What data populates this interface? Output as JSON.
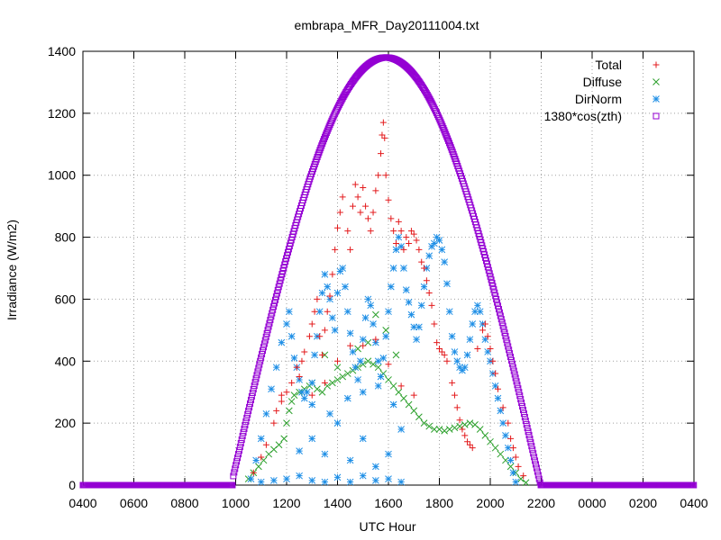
{
  "chart_data": {
    "type": "scatter",
    "title": "embrapa_MFR_Day20111004.txt",
    "xlabel": "UTC Hour",
    "ylabel": "Irradiance (W/m2)",
    "xlim": [
      0,
      24
    ],
    "ylim": [
      0,
      1400
    ],
    "x_ticks": [
      {
        "value": 0,
        "label": "0400"
      },
      {
        "value": 2,
        "label": "0600"
      },
      {
        "value": 4,
        "label": "0800"
      },
      {
        "value": 6,
        "label": "1000"
      },
      {
        "value": 8,
        "label": "1200"
      },
      {
        "value": 10,
        "label": "1400"
      },
      {
        "value": 12,
        "label": "1600"
      },
      {
        "value": 14,
        "label": "1800"
      },
      {
        "value": 16,
        "label": "2000"
      },
      {
        "value": 18,
        "label": "2200"
      },
      {
        "value": 20,
        "label": "0000"
      },
      {
        "value": 22,
        "label": "0200"
      },
      {
        "value": 24,
        "label": "0400"
      }
    ],
    "y_ticks": [
      0,
      200,
      400,
      600,
      800,
      1000,
      1200,
      1400
    ],
    "grid": true,
    "legend_position": "top-right",
    "colors": {
      "total": "#e31a1c",
      "diffuse": "#2ca02c",
      "dirnorm": "#1f8fe6",
      "cosine": "#9400d3"
    },
    "series": [
      {
        "name": "Total",
        "marker": "plus",
        "points": [
          [
            6.7,
            40
          ],
          [
            7.0,
            90
          ],
          [
            7.2,
            130
          ],
          [
            7.5,
            200
          ],
          [
            7.6,
            240
          ],
          [
            7.8,
            270
          ],
          [
            8.0,
            300
          ],
          [
            8.2,
            330
          ],
          [
            8.4,
            380
          ],
          [
            8.6,
            400
          ],
          [
            8.7,
            430
          ],
          [
            8.9,
            480
          ],
          [
            9.0,
            520
          ],
          [
            9.1,
            560
          ],
          [
            9.2,
            600
          ],
          [
            9.3,
            480
          ],
          [
            9.4,
            420
          ],
          [
            9.5,
            500
          ],
          [
            9.6,
            560
          ],
          [
            9.7,
            610
          ],
          [
            9.8,
            680
          ],
          [
            9.9,
            760
          ],
          [
            10.0,
            830
          ],
          [
            10.1,
            880
          ],
          [
            10.2,
            930
          ],
          [
            10.4,
            820
          ],
          [
            10.5,
            760
          ],
          [
            10.6,
            900
          ],
          [
            10.7,
            970
          ],
          [
            10.8,
            930
          ],
          [
            10.9,
            880
          ],
          [
            11.0,
            960
          ],
          [
            11.1,
            900
          ],
          [
            11.2,
            860
          ],
          [
            11.3,
            820
          ],
          [
            11.4,
            880
          ],
          [
            11.5,
            950
          ],
          [
            11.6,
            1000
          ],
          [
            11.7,
            1070
          ],
          [
            11.75,
            1130
          ],
          [
            11.8,
            1170
          ],
          [
            11.85,
            1120
          ],
          [
            11.9,
            1000
          ],
          [
            12.0,
            920
          ],
          [
            12.1,
            860
          ],
          [
            12.2,
            820
          ],
          [
            12.3,
            780
          ],
          [
            12.4,
            850
          ],
          [
            12.5,
            820
          ],
          [
            12.6,
            760
          ],
          [
            12.7,
            800
          ],
          [
            12.8,
            780
          ],
          [
            12.9,
            820
          ],
          [
            13.0,
            810
          ],
          [
            13.1,
            790
          ],
          [
            13.2,
            760
          ],
          [
            13.3,
            720
          ],
          [
            13.4,
            700
          ],
          [
            13.5,
            660
          ],
          [
            13.6,
            620
          ],
          [
            13.7,
            580
          ],
          [
            13.8,
            520
          ],
          [
            13.9,
            460
          ],
          [
            14.0,
            440
          ],
          [
            14.1,
            430
          ],
          [
            14.2,
            420
          ],
          [
            14.3,
            400
          ],
          [
            14.5,
            330
          ],
          [
            14.6,
            290
          ],
          [
            14.7,
            250
          ],
          [
            14.8,
            210
          ],
          [
            14.9,
            180
          ],
          [
            15.0,
            160
          ],
          [
            15.1,
            140
          ],
          [
            15.2,
            130
          ],
          [
            15.3,
            120
          ],
          [
            15.5,
            440
          ],
          [
            15.7,
            500
          ],
          [
            15.8,
            520
          ],
          [
            15.9,
            480
          ],
          [
            16.0,
            440
          ],
          [
            16.1,
            400
          ],
          [
            16.2,
            360
          ],
          [
            16.3,
            310
          ],
          [
            16.5,
            250
          ],
          [
            16.7,
            200
          ],
          [
            16.8,
            150
          ],
          [
            16.9,
            120
          ],
          [
            17.0,
            90
          ],
          [
            17.1,
            60
          ],
          [
            17.3,
            30
          ],
          [
            7.8,
            290
          ],
          [
            8.5,
            350
          ],
          [
            9.0,
            290
          ],
          [
            9.5,
            330
          ],
          [
            10.0,
            400
          ],
          [
            10.5,
            450
          ],
          [
            11.0,
            450
          ],
          [
            11.5,
            470
          ],
          [
            12.0,
            390
          ],
          [
            12.5,
            320
          ],
          [
            13.0,
            290
          ]
        ]
      },
      {
        "name": "Diffuse",
        "marker": "cross",
        "points": [
          [
            6.5,
            20
          ],
          [
            6.7,
            40
          ],
          [
            6.9,
            60
          ],
          [
            7.1,
            80
          ],
          [
            7.3,
            100
          ],
          [
            7.5,
            115
          ],
          [
            7.7,
            130
          ],
          [
            7.9,
            150
          ],
          [
            8.0,
            200
          ],
          [
            8.1,
            240
          ],
          [
            8.2,
            270
          ],
          [
            8.3,
            290
          ],
          [
            8.5,
            300
          ],
          [
            8.7,
            310
          ],
          [
            8.9,
            320
          ],
          [
            9.0,
            330
          ],
          [
            9.2,
            310
          ],
          [
            9.4,
            300
          ],
          [
            9.6,
            320
          ],
          [
            9.8,
            330
          ],
          [
            10.0,
            340
          ],
          [
            10.2,
            350
          ],
          [
            10.4,
            360
          ],
          [
            10.6,
            370
          ],
          [
            10.8,
            380
          ],
          [
            11.0,
            390
          ],
          [
            11.2,
            400
          ],
          [
            11.4,
            390
          ],
          [
            11.6,
            380
          ],
          [
            11.8,
            360
          ],
          [
            12.0,
            340
          ],
          [
            12.2,
            320
          ],
          [
            12.4,
            300
          ],
          [
            12.6,
            280
          ],
          [
            12.8,
            260
          ],
          [
            13.0,
            240
          ],
          [
            13.2,
            220
          ],
          [
            13.4,
            200
          ],
          [
            13.6,
            190
          ],
          [
            13.8,
            180
          ],
          [
            14.0,
            180
          ],
          [
            14.2,
            175
          ],
          [
            14.4,
            180
          ],
          [
            14.6,
            185
          ],
          [
            14.8,
            190
          ],
          [
            15.0,
            195
          ],
          [
            15.2,
            200
          ],
          [
            15.4,
            195
          ],
          [
            15.6,
            180
          ],
          [
            15.8,
            160
          ],
          [
            16.0,
            140
          ],
          [
            16.2,
            120
          ],
          [
            16.4,
            100
          ],
          [
            16.6,
            80
          ],
          [
            16.8,
            60
          ],
          [
            17.0,
            40
          ],
          [
            17.2,
            20
          ],
          [
            17.4,
            8
          ],
          [
            9.5,
            420
          ],
          [
            10.0,
            380
          ],
          [
            10.8,
            440
          ],
          [
            11.2,
            460
          ],
          [
            11.5,
            550
          ],
          [
            11.9,
            500
          ],
          [
            12.3,
            420
          ]
        ]
      },
      {
        "name": "DirNorm",
        "marker": "star",
        "points": [
          [
            6.6,
            20
          ],
          [
            6.8,
            80
          ],
          [
            7.0,
            150
          ],
          [
            7.2,
            230
          ],
          [
            7.4,
            310
          ],
          [
            7.6,
            380
          ],
          [
            7.8,
            460
          ],
          [
            8.0,
            520
          ],
          [
            8.1,
            560
          ],
          [
            8.2,
            480
          ],
          [
            8.3,
            410
          ],
          [
            8.4,
            380
          ],
          [
            8.5,
            340
          ],
          [
            8.6,
            300
          ],
          [
            8.7,
            280
          ],
          [
            8.8,
            300
          ],
          [
            9.0,
            330
          ],
          [
            9.1,
            420
          ],
          [
            9.2,
            480
          ],
          [
            9.3,
            560
          ],
          [
            9.4,
            620
          ],
          [
            9.5,
            680
          ],
          [
            9.6,
            640
          ],
          [
            9.7,
            600
          ],
          [
            9.8,
            540
          ],
          [
            9.9,
            500
          ],
          [
            10.0,
            620
          ],
          [
            10.1,
            690
          ],
          [
            10.2,
            700
          ],
          [
            10.3,
            640
          ],
          [
            10.4,
            560
          ],
          [
            10.5,
            490
          ],
          [
            10.6,
            430
          ],
          [
            10.7,
            380
          ],
          [
            10.8,
            340
          ],
          [
            10.9,
            400
          ],
          [
            11.0,
            470
          ],
          [
            11.1,
            540
          ],
          [
            11.2,
            600
          ],
          [
            11.3,
            580
          ],
          [
            11.4,
            520
          ],
          [
            11.5,
            460
          ],
          [
            11.6,
            400
          ],
          [
            11.7,
            350
          ],
          [
            11.8,
            410
          ],
          [
            11.9,
            480
          ],
          [
            12.0,
            560
          ],
          [
            12.1,
            640
          ],
          [
            12.2,
            700
          ],
          [
            12.3,
            760
          ],
          [
            12.4,
            800
          ],
          [
            12.5,
            770
          ],
          [
            12.6,
            700
          ],
          [
            12.7,
            630
          ],
          [
            12.8,
            590
          ],
          [
            12.9,
            550
          ],
          [
            13.0,
            510
          ],
          [
            13.1,
            470
          ],
          [
            13.2,
            510
          ],
          [
            13.3,
            580
          ],
          [
            13.4,
            640
          ],
          [
            13.5,
            700
          ],
          [
            13.6,
            740
          ],
          [
            13.7,
            770
          ],
          [
            13.8,
            780
          ],
          [
            13.9,
            800
          ],
          [
            14.0,
            790
          ],
          [
            14.1,
            760
          ],
          [
            14.2,
            720
          ],
          [
            14.3,
            650
          ],
          [
            14.4,
            560
          ],
          [
            14.5,
            480
          ],
          [
            14.6,
            430
          ],
          [
            14.7,
            400
          ],
          [
            14.8,
            380
          ],
          [
            14.9,
            370
          ],
          [
            15.0,
            380
          ],
          [
            15.1,
            420
          ],
          [
            15.2,
            470
          ],
          [
            15.3,
            520
          ],
          [
            15.4,
            560
          ],
          [
            15.5,
            580
          ],
          [
            15.6,
            560
          ],
          [
            15.7,
            520
          ],
          [
            15.8,
            470
          ],
          [
            15.9,
            430
          ],
          [
            16.0,
            400
          ],
          [
            16.1,
            360
          ],
          [
            16.2,
            320
          ],
          [
            16.3,
            280
          ],
          [
            16.4,
            240
          ],
          [
            16.5,
            200
          ],
          [
            16.6,
            160
          ],
          [
            16.7,
            120
          ],
          [
            16.8,
            80
          ],
          [
            16.9,
            40
          ],
          [
            17.0,
            10
          ],
          [
            7.0,
            10
          ],
          [
            7.5,
            15
          ],
          [
            8.0,
            20
          ],
          [
            8.5,
            30
          ],
          [
            9.0,
            15
          ],
          [
            9.5,
            10
          ],
          [
            10.0,
            25
          ],
          [
            10.5,
            10
          ],
          [
            11.0,
            30
          ],
          [
            11.5,
            15
          ],
          [
            12.0,
            20
          ],
          [
            12.5,
            10
          ],
          [
            8.5,
            110
          ],
          [
            9.0,
            150
          ],
          [
            9.5,
            100
          ],
          [
            10.0,
            200
          ],
          [
            10.5,
            80
          ],
          [
            11.0,
            150
          ],
          [
            11.5,
            60
          ],
          [
            12.0,
            100
          ],
          [
            12.5,
            180
          ],
          [
            9.0,
            260
          ],
          [
            9.7,
            230
          ],
          [
            10.4,
            280
          ],
          [
            11.0,
            300
          ],
          [
            11.6,
            320
          ],
          [
            12.2,
            260
          ]
        ]
      },
      {
        "name": "1380*cos(zth)",
        "marker": "square",
        "peak": 1380,
        "peak_x": 11.9,
        "start_x": 5.9,
        "end_x": 18.05
      }
    ]
  }
}
